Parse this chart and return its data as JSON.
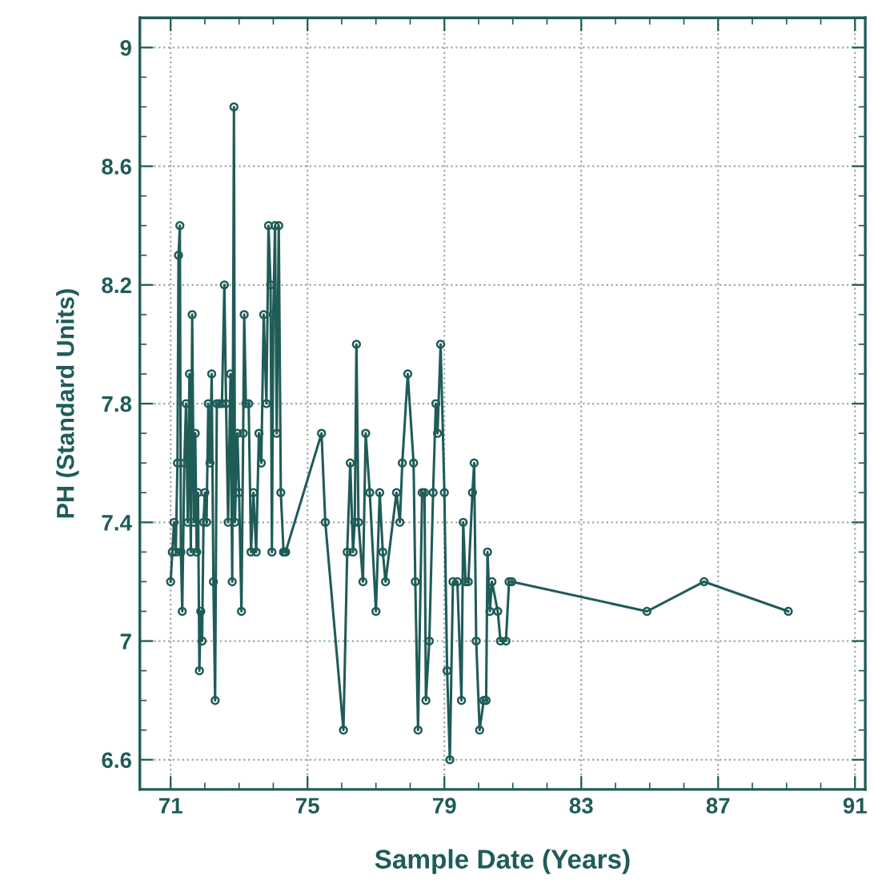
{
  "chart_data": {
    "type": "line",
    "xlabel": "Sample Date (Years)",
    "ylabel": "PH (Standard Units)",
    "xlim": [
      70.1,
      91.3
    ],
    "ylim": [
      6.5,
      9.1
    ],
    "xticks": [
      71,
      75,
      79,
      83,
      87,
      91
    ],
    "yticks": [
      {
        "value": 6.6,
        "label": "6.6"
      },
      {
        "value": 7.0,
        "label": "7"
      },
      {
        "value": 7.4,
        "label": "7.4"
      },
      {
        "value": 7.8,
        "label": "7.8"
      },
      {
        "value": 8.2,
        "label": "8.2"
      },
      {
        "value": 8.6,
        "label": "8.6"
      },
      {
        "value": 9.0,
        "label": "9"
      }
    ],
    "grid": true,
    "marker": "circle",
    "line_style": "solid",
    "series": [
      {
        "color": "#1f5c58",
        "x": [
          71.0,
          71.05,
          71.1,
          71.15,
          71.2,
          71.23,
          71.27,
          71.3,
          71.34,
          71.4,
          71.45,
          71.5,
          71.55,
          71.59,
          71.63,
          71.68,
          71.72,
          71.76,
          71.8,
          71.84,
          71.88,
          71.92,
          71.96,
          72.0,
          72.05,
          72.1,
          72.15,
          72.2,
          72.25,
          72.3,
          72.35,
          72.42,
          72.5,
          72.57,
          72.62,
          72.68,
          72.75,
          72.8,
          72.85,
          72.88,
          72.95,
          73.0,
          73.07,
          73.12,
          73.15,
          73.2,
          73.28,
          73.35,
          73.42,
          73.5,
          73.58,
          73.65,
          73.72,
          73.8,
          73.86,
          73.92,
          73.96,
          74.0,
          74.05,
          74.1,
          74.16,
          74.22,
          74.3,
          74.33,
          74.36,
          75.41,
          75.52,
          76.05,
          76.16,
          76.25,
          76.33,
          76.38,
          76.43,
          76.49,
          76.62,
          76.7,
          76.82,
          77.0,
          77.11,
          77.2,
          77.28,
          77.6,
          77.7,
          77.77,
          77.93,
          78.1,
          78.15,
          78.23,
          78.35,
          78.42,
          78.46,
          78.56,
          78.67,
          78.75,
          78.8,
          78.89,
          79.0,
          79.08,
          79.16,
          79.25,
          79.38,
          79.5,
          79.55,
          79.62,
          79.7,
          79.82,
          79.87,
          79.93,
          80.03,
          80.15,
          80.22,
          80.26,
          80.33,
          80.39,
          80.56,
          80.64,
          80.8,
          80.89,
          80.97,
          84.92,
          86.59,
          89.05
        ],
        "values": [
          7.2,
          7.3,
          7.4,
          7.3,
          7.6,
          8.3,
          8.4,
          7.3,
          7.1,
          7.6,
          7.8,
          7.4,
          7.9,
          7.3,
          8.1,
          7.4,
          7.7,
          7.3,
          7.5,
          6.9,
          7.1,
          7.0,
          7.4,
          7.5,
          7.4,
          7.8,
          7.6,
          7.9,
          7.2,
          6.8,
          7.8,
          7.8,
          7.8,
          8.2,
          7.8,
          7.4,
          7.9,
          7.2,
          8.8,
          7.4,
          7.7,
          7.5,
          7.1,
          7.7,
          8.1,
          7.8,
          7.8,
          7.3,
          7.5,
          7.3,
          7.7,
          7.6,
          8.1,
          7.8,
          8.4,
          8.2,
          7.3,
          8.1,
          8.4,
          7.7,
          8.4,
          7.5,
          7.3,
          7.3,
          7.3,
          7.7,
          7.4,
          6.7,
          7.3,
          7.6,
          7.3,
          7.4,
          8.0,
          7.4,
          7.2,
          7.7,
          7.5,
          7.1,
          7.5,
          7.3,
          7.2,
          7.5,
          7.4,
          7.6,
          7.9,
          7.6,
          7.2,
          6.7,
          7.5,
          7.5,
          6.8,
          7.0,
          7.5,
          7.8,
          7.7,
          8.0,
          7.5,
          6.9,
          6.6,
          7.2,
          7.2,
          6.8,
          7.4,
          7.2,
          7.2,
          7.5,
          7.6,
          7.0,
          6.7,
          6.8,
          6.8,
          7.3,
          7.1,
          7.2,
          7.1,
          7.0,
          7.0,
          7.2,
          7.2,
          7.1,
          7.2,
          7.1
        ]
      }
    ]
  }
}
